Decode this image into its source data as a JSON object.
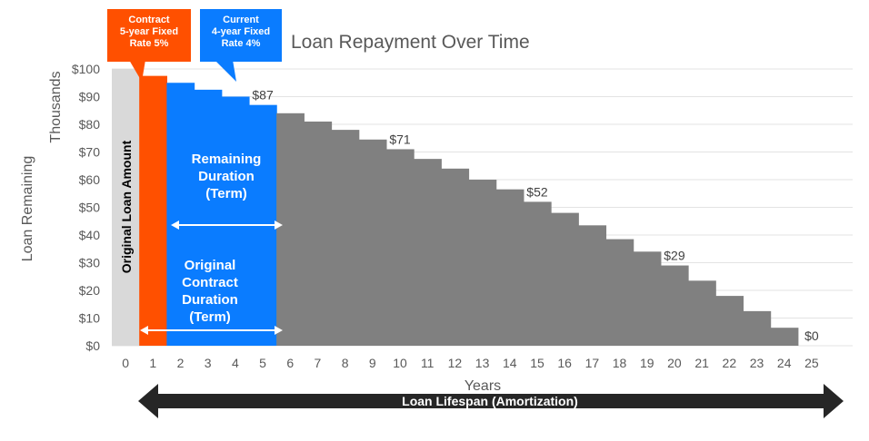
{
  "chart_data": {
    "type": "bar",
    "title": "Loan Repayment Over Time",
    "xlabel": "Years",
    "ylabel": "Loan Remaining",
    "ylabel_unit": "Thousands",
    "ylim": [
      0,
      100
    ],
    "yticks": [
      "$0",
      "$10",
      "$20",
      "$30",
      "$40",
      "$50",
      "$60",
      "$70",
      "$80",
      "$90",
      "$100"
    ],
    "grid": true,
    "categories": [
      "0",
      "1",
      "2",
      "3",
      "4",
      "5",
      "6",
      "7",
      "8",
      "9",
      "10",
      "11",
      "12",
      "13",
      "14",
      "15",
      "16",
      "17",
      "18",
      "19",
      "20",
      "21",
      "22",
      "23",
      "24",
      "25"
    ],
    "values": [
      100,
      97.5,
      95,
      92.5,
      90,
      87,
      84,
      81,
      78,
      74.5,
      71,
      67.5,
      64,
      60,
      56.5,
      52,
      48,
      43.5,
      38.5,
      34,
      29,
      23.5,
      18,
      12.5,
      6.5,
      0
    ],
    "bar_colors": [
      "#d9d9d9",
      "#ff5000",
      "#0a7cff",
      "#0a7cff",
      "#0a7cff",
      "#0a7cff",
      "#808080",
      "#808080",
      "#808080",
      "#808080",
      "#808080",
      "#808080",
      "#808080",
      "#808080",
      "#808080",
      "#808080",
      "#808080",
      "#808080",
      "#808080",
      "#808080",
      "#808080",
      "#808080",
      "#808080",
      "#808080",
      "#808080",
      "#808080"
    ],
    "data_labels": [
      {
        "x": "5",
        "text": "$87"
      },
      {
        "x": "10",
        "text": "$71"
      },
      {
        "x": "15",
        "text": "$52"
      },
      {
        "x": "20",
        "text": "$29"
      },
      {
        "x": "25",
        "text": "$0"
      }
    ],
    "annotations": {
      "contract_callout": "Contract\n5-year Fixed\nRate 5%",
      "current_callout": "Current\n4-year Fixed\nRate 4%",
      "original_amount": "Original Loan Amount",
      "remaining_duration": "Remaining\nDuration\n(Term)",
      "original_duration": "Original\nContract\nDuration\n(Term)",
      "lifespan": "Loan Lifespan (Amortization)"
    },
    "colors": {
      "original": "#d9d9d9",
      "contract": "#ff5000",
      "current": "#0a7cff",
      "remaining": "#808080",
      "lifespan_bar": "#262626",
      "gridline": "#e3e3e3"
    }
  }
}
